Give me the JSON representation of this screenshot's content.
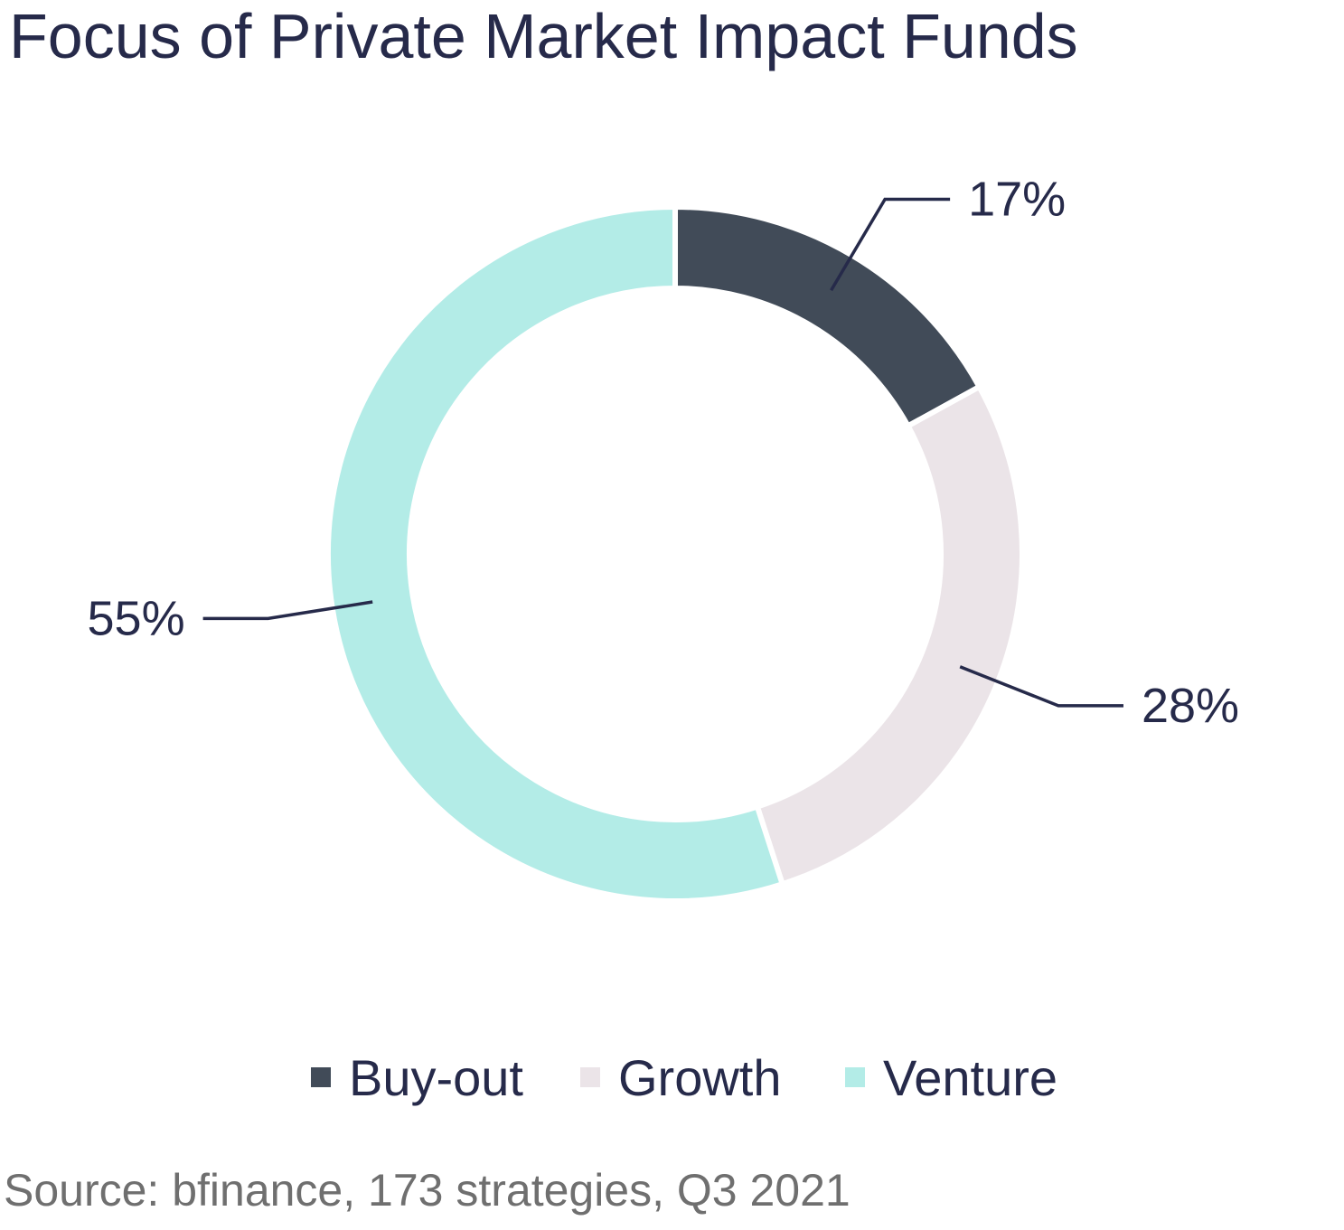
{
  "chart_data": {
    "type": "pie",
    "title": "Focus of Private Market Impact Funds",
    "categories": [
      "Buy-out",
      "Growth",
      "Venture"
    ],
    "values": [
      17,
      28,
      55
    ],
    "labels": [
      "17%",
      "28%",
      "55%"
    ],
    "colors": [
      "#414b58",
      "#ebe4e8",
      "#b3ece7"
    ],
    "legend_position": "bottom",
    "source": "Source: bfinance, 173 strategies, Q3 2021"
  }
}
